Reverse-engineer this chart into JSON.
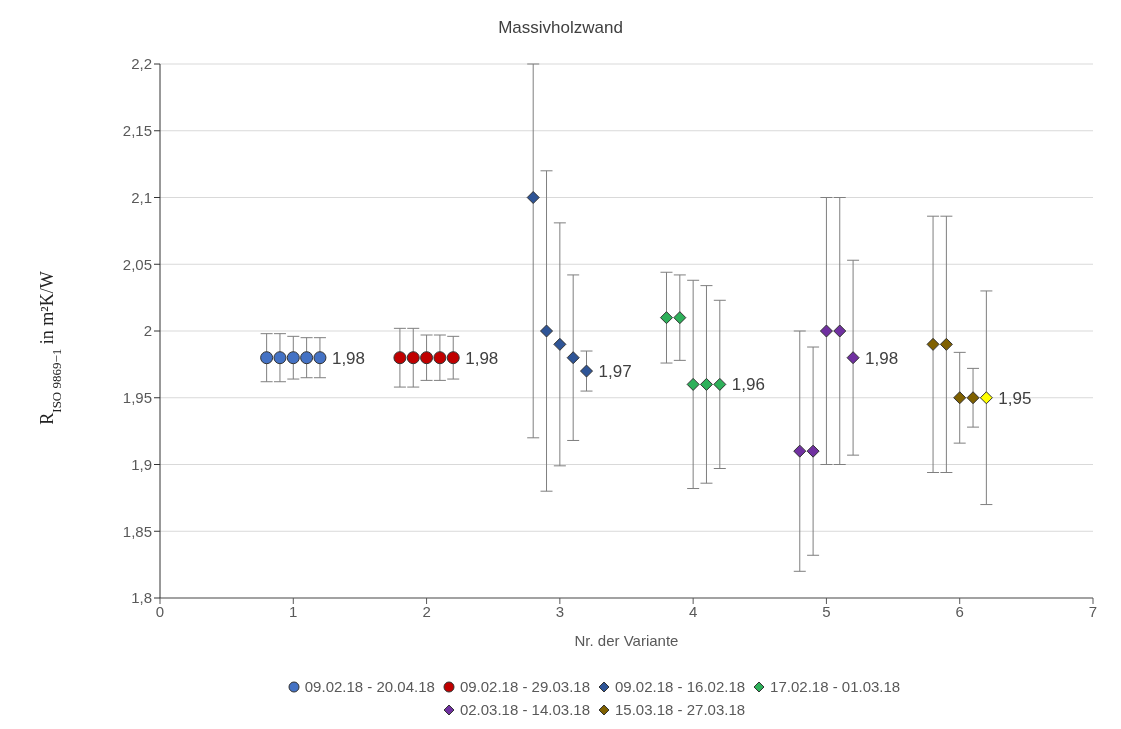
{
  "chart_data": {
    "type": "scatter",
    "title": "Massivholzwand",
    "xlabel": "Nr. der Variante",
    "ylabel": "R$_{ISO 9869−1}$ in m²K/W",
    "xlim": [
      0,
      7
    ],
    "xticks": [
      0,
      1,
      2,
      3,
      4,
      5,
      6,
      7
    ],
    "ylim": [
      1.8,
      2.2
    ],
    "yticks": [
      {
        "value": 1.8,
        "label": "1,8"
      },
      {
        "value": 1.85,
        "label": "1,85"
      },
      {
        "value": 1.9,
        "label": "1,9"
      },
      {
        "value": 1.95,
        "label": "1,95"
      },
      {
        "value": 2,
        "label": "2"
      },
      {
        "value": 2.05,
        "label": "2,05"
      },
      {
        "value": 2.1,
        "label": "2,1"
      },
      {
        "value": 2.15,
        "label": "2,15"
      },
      {
        "value": 2.2,
        "label": "2,2"
      }
    ],
    "grid": "y",
    "legend": "bottom",
    "series": [
      {
        "name": "09.02.18 - 20.04.18",
        "color": "#4472c4",
        "marker": "circle",
        "x": [
          0.8,
          0.9,
          1.0,
          1.1,
          1.2
        ],
        "values": [
          1.98,
          1.98,
          1.98,
          1.98,
          1.98
        ],
        "errors": [
          0.018,
          0.018,
          0.016,
          0.015,
          0.015
        ],
        "value_labels": [
          null,
          null,
          null,
          null,
          "1,98"
        ]
      },
      {
        "name": "09.02.18 - 29.03.18",
        "color": "#c00000",
        "marker": "circle",
        "x": [
          1.8,
          1.9,
          2.0,
          2.1,
          2.2
        ],
        "values": [
          1.98,
          1.98,
          1.98,
          1.98,
          1.98
        ],
        "errors": [
          0.022,
          0.022,
          0.017,
          0.017,
          0.016
        ],
        "value_labels": [
          null,
          null,
          null,
          null,
          "1,98"
        ]
      },
      {
        "name": "09.02.18 - 16.02.18",
        "color": "#2f5597",
        "marker": "diamond",
        "x": [
          2.8,
          2.9,
          3.0,
          3.1,
          3.2
        ],
        "values": [
          2.1,
          2.0,
          1.99,
          1.98,
          1.97
        ],
        "errors": [
          [
            1.92,
            2.2
          ],
          0.12,
          0.091,
          0.062,
          0.015
        ],
        "value_labels": [
          null,
          null,
          null,
          null,
          "1,97"
        ]
      },
      {
        "name": "17.02.18 - 01.03.18",
        "color": "#2eb05a",
        "marker": "diamond",
        "x": [
          3.8,
          3.9,
          4.0,
          4.1,
          4.2
        ],
        "values": [
          2.01,
          2.01,
          1.96,
          1.96,
          1.96
        ],
        "errors": [
          0.034,
          0.032,
          0.078,
          0.074,
          0.063
        ],
        "value_labels": [
          null,
          null,
          null,
          null,
          "1,96"
        ]
      },
      {
        "name": "02.03.18 - 14.03.18",
        "color": "#7030a0",
        "marker": "diamond",
        "x": [
          4.8,
          4.9,
          5.0,
          5.1,
          5.2
        ],
        "values": [
          1.91,
          1.91,
          2.0,
          2.0,
          1.98
        ],
        "errors": [
          0.09,
          0.078,
          0.1,
          0.1,
          0.073
        ],
        "value_labels": [
          null,
          null,
          null,
          null,
          "1,98"
        ]
      },
      {
        "name": "15.03.18 - 27.03.18",
        "color": "#7f6000",
        "colors": [
          "#7f6000",
          "#7f6000",
          "#7f6000",
          "#7f6000",
          "#ffff00"
        ],
        "marker": "diamond",
        "x": [
          5.8,
          5.9,
          6.0,
          6.1,
          6.2
        ],
        "values": [
          1.99,
          1.99,
          1.95,
          1.95,
          1.95
        ],
        "errors": [
          0.096,
          0.096,
          0.034,
          0.022,
          0.08
        ],
        "value_labels": [
          null,
          null,
          null,
          null,
          "1,95"
        ]
      }
    ]
  }
}
